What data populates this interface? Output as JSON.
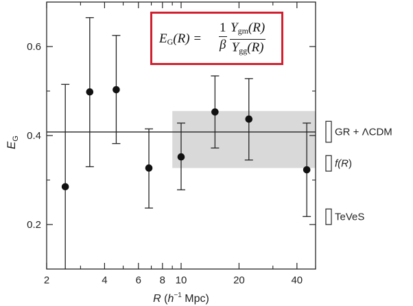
{
  "chart_data": {
    "type": "scatter",
    "x_scale": "log",
    "xlim": [
      2,
      50
    ],
    "ylim": [
      0.1,
      0.7
    ],
    "x_ticks": [
      {
        "value": 2,
        "label": "2"
      },
      {
        "value": 4,
        "label": "4"
      },
      {
        "value": 6,
        "label": "6"
      },
      {
        "value": 8,
        "label": "8"
      },
      {
        "value": 10,
        "label": "10"
      },
      {
        "value": 20,
        "label": "20"
      },
      {
        "value": 40,
        "label": "40"
      }
    ],
    "x_minor_ticks": [
      3,
      5,
      7,
      9,
      30,
      50
    ],
    "y_ticks": [
      {
        "value": 0.2,
        "label": "0.2"
      },
      {
        "value": 0.4,
        "label": "0.4"
      },
      {
        "value": 0.6,
        "label": "0.6"
      }
    ],
    "y_minor_ticks": [
      0.3,
      0.5
    ],
    "xlabel": {
      "var": "R",
      "open": " (",
      "h": "h",
      "sup": "−1",
      "rest": " Mpc)"
    },
    "ylabel": {
      "var": "E",
      "sub": "G"
    },
    "points": [
      {
        "x": 2.5,
        "y": 0.285,
        "ylo": 0.1,
        "yhi": 0.515
      },
      {
        "x": 3.35,
        "y": 0.498,
        "ylo": 0.33,
        "yhi": 0.665
      },
      {
        "x": 4.6,
        "y": 0.503,
        "ylo": 0.382,
        "yhi": 0.625
      },
      {
        "x": 6.8,
        "y": 0.327,
        "ylo": 0.237,
        "yhi": 0.415
      },
      {
        "x": 10.0,
        "y": 0.352,
        "ylo": 0.278,
        "yhi": 0.428
      },
      {
        "x": 15.0,
        "y": 0.453,
        "ylo": 0.372,
        "yhi": 0.534
      },
      {
        "x": 22.5,
        "y": 0.437,
        "ylo": 0.345,
        "yhi": 0.528
      },
      {
        "x": 45.0,
        "y": 0.323,
        "ylo": 0.218,
        "yhi": 0.428
      }
    ],
    "reference_line": {
      "y": 0.408
    },
    "shaded_band": {
      "xmin": 9,
      "xmax": 50,
      "ymin": 0.327,
      "ymax": 0.455,
      "color": "#d9d9d9"
    },
    "model_ranges": [
      {
        "label_parts": [
          "GR + ",
          "Λ",
          "CDM"
        ],
        "ymin": 0.385,
        "ymax": 0.432
      },
      {
        "label_parts": [
          "f(",
          "R",
          ")"
        ],
        "ymin": 0.32,
        "ymax": 0.355
      },
      {
        "label_parts": [
          "TeVeS"
        ],
        "ymin": 0.2,
        "ymax": 0.235
      }
    ],
    "formula": {
      "lhs_var": "E",
      "lhs_sub": "G",
      "lhs_arg": "(R) =",
      "frac1_num": "1",
      "frac1_den": "β",
      "frac2_num_sym": "Υ",
      "frac2_num_sub": "gm",
      "frac2_num_arg": "(R)",
      "frac2_den_sym": "Υ",
      "frac2_den_sub": "gg",
      "frac2_den_arg": "(R)"
    },
    "grid": false,
    "colors": {
      "points": "#111111",
      "axis": "#222222",
      "formula_border": "#d0202f",
      "band": "#d9d9d9"
    }
  }
}
